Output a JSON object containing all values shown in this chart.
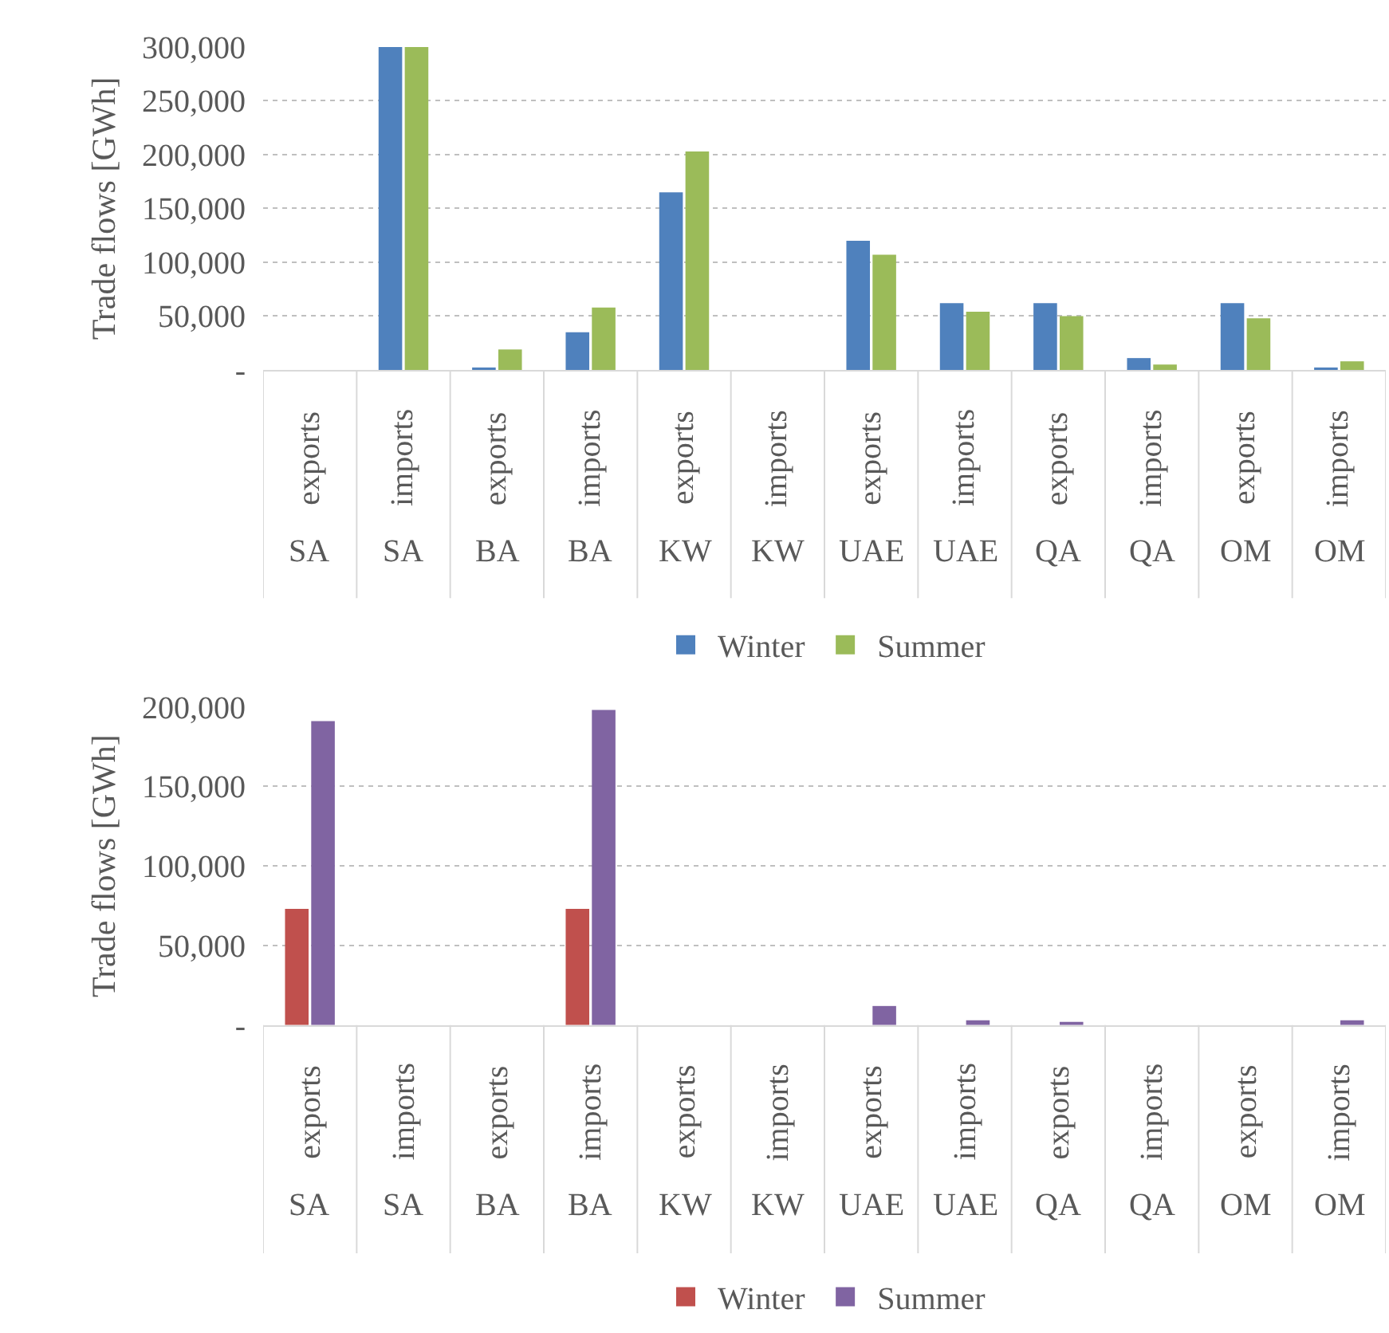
{
  "chart_data": [
    {
      "type": "bar",
      "ylabel": "Trade flows [GWh]",
      "categories": [
        "exports\nSA",
        "imports\nSA",
        "exports\nBA",
        "imports\nBA",
        "exports\nKW",
        "imports\nKW",
        "exports\nUAE",
        "imports\nUAE",
        "exports\nQA",
        "imports\nQA",
        "exports\nOM",
        "imports\nOM"
      ],
      "series": [
        {
          "name": "Winter",
          "color": "#4f81bd",
          "values": [
            0,
            300000,
            1000,
            35000,
            165000,
            0,
            120000,
            62000,
            62000,
            11000,
            62000,
            2000
          ]
        },
        {
          "name": "Summer",
          "color": "#9bbb59",
          "values": [
            0,
            300000,
            19000,
            58000,
            203000,
            0,
            107000,
            54000,
            50000,
            5000,
            48000,
            8000
          ]
        }
      ],
      "ylim": [
        0,
        300000
      ],
      "yticks": [
        {
          "value": 0,
          "label": "-"
        },
        {
          "value": 50000,
          "label": "50,000"
        },
        {
          "value": 100000,
          "label": "100,000"
        },
        {
          "value": 150000,
          "label": "150,000"
        },
        {
          "value": 200000,
          "label": "200,000"
        },
        {
          "value": 250000,
          "label": "250,000"
        },
        {
          "value": 300000,
          "label": "300,000"
        }
      ],
      "grid": "y",
      "legend": "bottom"
    },
    {
      "type": "bar",
      "ylabel": "Trade flows [GWh]",
      "categories": [
        "exports\nSA",
        "imports\nSA",
        "exports\nBA",
        "imports\nBA",
        "exports\nKW",
        "imports\nKW",
        "exports\nUAE",
        "imports\nUAE",
        "exports\nQA",
        "imports\nQA",
        "exports\nOM",
        "imports\nOM"
      ],
      "series": [
        {
          "name": "Winter",
          "color": "#c0504d",
          "values": [
            73000,
            0,
            0,
            73000,
            0,
            0,
            0,
            0,
            0,
            0,
            0,
            0
          ]
        },
        {
          "name": "Summer",
          "color": "#8064a2",
          "values": [
            191000,
            0,
            0,
            198000,
            0,
            0,
            12000,
            3000,
            2000,
            0,
            0,
            3000
          ]
        }
      ],
      "ylim": [
        0,
        200000
      ],
      "yticks": [
        {
          "value": 0,
          "label": "-"
        },
        {
          "value": 50000,
          "label": "50,000"
        },
        {
          "value": 100000,
          "label": "100,000"
        },
        {
          "value": 150000,
          "label": "150,000"
        },
        {
          "value": 200000,
          "label": "200,000"
        }
      ],
      "grid": "y",
      "legend": "bottom"
    }
  ]
}
